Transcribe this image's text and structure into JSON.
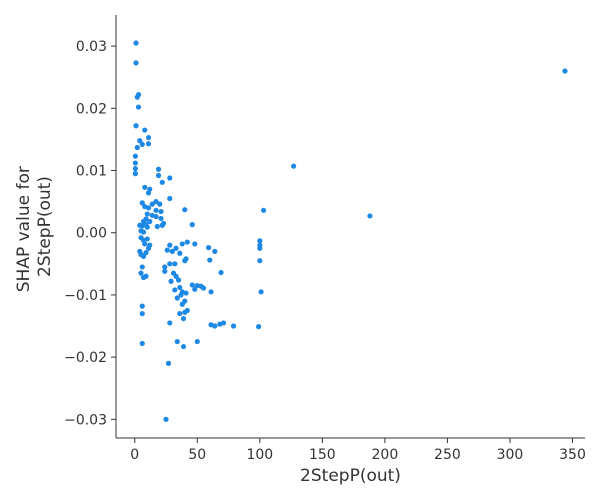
{
  "chart_data": {
    "type": "scatter",
    "xlabel": "2StepP(out)",
    "ylabel_lines": [
      "SHAP value for",
      "2StepP(out)"
    ],
    "xlim": [
      -15,
      360
    ],
    "ylim": [
      -0.033,
      0.035
    ],
    "xticks": [
      0,
      50,
      100,
      150,
      200,
      250,
      300,
      350
    ],
    "xtick_labels": [
      "0",
      "50",
      "100",
      "150",
      "200",
      "250",
      "300",
      "350"
    ],
    "yticks": [
      -0.03,
      -0.02,
      -0.01,
      0.0,
      0.01,
      0.02,
      0.03
    ],
    "ytick_labels": [
      "−0.03",
      "−0.02",
      "−0.01",
      "0.00",
      "0.01",
      "0.02",
      "0.03"
    ],
    "grid": false,
    "point_color": "#1e88e5",
    "points": [
      [
        1,
        0.0305
      ],
      [
        1,
        0.0273
      ],
      [
        2,
        0.0218
      ],
      [
        3,
        0.0222
      ],
      [
        3,
        0.0202
      ],
      [
        1,
        0.0172
      ],
      [
        4,
        0.0148
      ],
      [
        2,
        0.0137
      ],
      [
        6,
        0.0142
      ],
      [
        0.5,
        0.0123
      ],
      [
        0.5,
        0.0112
      ],
      [
        0.5,
        0.0103
      ],
      [
        0.5,
        0.0095
      ],
      [
        8,
        0.0165
      ],
      [
        11,
        0.0153
      ],
      [
        11,
        0.0143
      ],
      [
        19,
        0.0102
      ],
      [
        19,
        0.0092
      ],
      [
        28,
        0.0088
      ],
      [
        22,
        0.0081
      ],
      [
        8,
        0.0073
      ],
      [
        12,
        0.007
      ],
      [
        11,
        0.0064
      ],
      [
        28,
        0.0055
      ],
      [
        17,
        0.005
      ],
      [
        14,
        0.0046
      ],
      [
        20,
        0.0046
      ],
      [
        6,
        0.0048
      ],
      [
        8,
        0.0042
      ],
      [
        11,
        0.004
      ],
      [
        17,
        0.0036
      ],
      [
        21,
        0.0034
      ],
      [
        10,
        0.003
      ],
      [
        14,
        0.0028
      ],
      [
        17,
        0.0026
      ],
      [
        21,
        0.0023
      ],
      [
        9,
        0.0022
      ],
      [
        7,
        0.0018
      ],
      [
        12,
        0.0018
      ],
      [
        9,
        0.0013
      ],
      [
        6,
        0.0011
      ],
      [
        4,
        0.0012
      ],
      [
        10,
        0.0009
      ],
      [
        18,
        0.001
      ],
      [
        22,
        0.0012
      ],
      [
        40,
        0.0037
      ],
      [
        46,
        0.0013
      ],
      [
        23,
        0.0015
      ],
      [
        5,
        0.0003
      ],
      [
        7,
        0.0001
      ],
      [
        5,
        -0.0008
      ],
      [
        7,
        -0.0012
      ],
      [
        10,
        -0.001
      ],
      [
        8,
        -0.0018
      ],
      [
        12,
        -0.002
      ],
      [
        4,
        -0.003
      ],
      [
        5,
        -0.0035
      ],
      [
        7,
        -0.0038
      ],
      [
        9,
        -0.0032
      ],
      [
        11,
        -0.0025
      ],
      [
        6,
        -0.0055
      ],
      [
        5,
        -0.0065
      ],
      [
        9,
        -0.007
      ],
      [
        7,
        -0.0072
      ],
      [
        28,
        -0.002
      ],
      [
        30,
        -0.003
      ],
      [
        33,
        -0.0025
      ],
      [
        26,
        -0.0028
      ],
      [
        38,
        -0.0018
      ],
      [
        42,
        -0.0015
      ],
      [
        48,
        -0.0018
      ],
      [
        59,
        -0.0024
      ],
      [
        64,
        -0.003
      ],
      [
        32,
        -0.005
      ],
      [
        28,
        -0.005
      ],
      [
        24,
        -0.0055
      ],
      [
        36,
        -0.0033
      ],
      [
        41,
        -0.0042
      ],
      [
        60,
        -0.0044
      ],
      [
        40,
        -0.0045
      ],
      [
        31,
        -0.0065
      ],
      [
        24,
        -0.0062
      ],
      [
        33,
        -0.007
      ],
      [
        29,
        -0.0078
      ],
      [
        35,
        -0.0076
      ],
      [
        36,
        -0.0088
      ],
      [
        38,
        -0.0095
      ],
      [
        32,
        -0.0092
      ],
      [
        37,
        -0.01
      ],
      [
        34,
        -0.0105
      ],
      [
        41,
        -0.0097
      ],
      [
        46,
        -0.0084
      ],
      [
        48,
        -0.0091
      ],
      [
        50,
        -0.0085
      ],
      [
        53,
        -0.0086
      ],
      [
        55,
        -0.0089
      ],
      [
        61,
        -0.0095
      ],
      [
        69,
        -0.0064
      ],
      [
        40,
        -0.011
      ],
      [
        38,
        -0.0115
      ],
      [
        42,
        -0.0125
      ],
      [
        40,
        -0.0128
      ],
      [
        36,
        -0.013
      ],
      [
        39,
        -0.0138
      ],
      [
        28,
        -0.0145
      ],
      [
        61,
        -0.0148
      ],
      [
        64,
        -0.015
      ],
      [
        68,
        -0.0147
      ],
      [
        71,
        -0.0145
      ],
      [
        79,
        -0.015
      ],
      [
        99,
        -0.0151
      ],
      [
        100,
        -0.0013
      ],
      [
        100,
        -0.002
      ],
      [
        100,
        -0.0025
      ],
      [
        100,
        -0.0045
      ],
      [
        103,
        0.0036
      ],
      [
        101,
        -0.0095
      ],
      [
        34,
        -0.0175
      ],
      [
        39,
        -0.0183
      ],
      [
        50,
        -0.0175
      ],
      [
        6,
        -0.0118
      ],
      [
        6,
        -0.013
      ],
      [
        6,
        -0.0178
      ],
      [
        27,
        -0.021
      ],
      [
        25,
        -0.03
      ],
      [
        127,
        0.0107
      ],
      [
        188,
        0.0027
      ],
      [
        344,
        0.026
      ]
    ]
  }
}
